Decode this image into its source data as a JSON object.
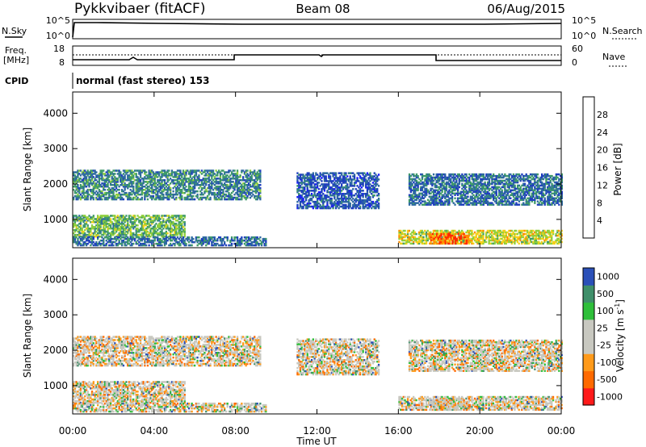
{
  "header": {
    "station": "Pykkvibaer (fitACF)",
    "beam": "Beam 08",
    "date": "06/Aug/2015"
  },
  "status_panels": {
    "nsky_label": "N.Sky",
    "nsearch_label": "N.Search",
    "nsky_ticks": [
      "10^5",
      "10^0"
    ],
    "nsearch_ticks": [
      "10^5",
      "10^0"
    ],
    "freq_label_line1": "Freq.",
    "freq_label_line2": "[MHz]",
    "freq_ticks": [
      "18",
      "8"
    ],
    "nave_label": "Nave",
    "nave_ticks": [
      "60",
      "0"
    ],
    "cpid_label": "CPID",
    "cpid_text": "normal (fast stereo) 153"
  },
  "colors": {
    "power": [
      "#1a1aff",
      "#1f3fbf",
      "#2e6aa0",
      "#3f9a6a",
      "#8fcf3c",
      "#f4d11a",
      "#ff8c00",
      "#ff2a00"
    ],
    "velocity": [
      "#ff1a1a",
      "#ff6a00",
      "#ff9a1a",
      "#c8c8c0",
      "#c8c8c0",
      "#2fbf3a",
      "#3f8f6a",
      "#2b50b8"
    ]
  },
  "chart_data": [
    {
      "type": "heatmap",
      "panel": "power",
      "ylabel": "Slant Range [km]",
      "yticks": [
        "1000",
        "2000",
        "3000",
        "4000"
      ],
      "ylim": [
        200,
        4600
      ],
      "xlim_hours": [
        0,
        24
      ],
      "colorbar_label": "Power [dB]",
      "colorbar_ticks": [
        "4",
        "8",
        "12",
        "16",
        "20",
        "24",
        "28"
      ],
      "colorbar_range": [
        0,
        32
      ],
      "features": [
        {
          "t": [
            0.0,
            9.2
          ],
          "r": [
            1550,
            2400
          ],
          "v": 12
        },
        {
          "t": [
            0.0,
            5.5
          ],
          "r": [
            500,
            1100
          ],
          "v": 16
        },
        {
          "t": [
            0.0,
            9.5
          ],
          "r": [
            250,
            500
          ],
          "v": 10
        },
        {
          "t": [
            11.0,
            15.0
          ],
          "r": [
            1300,
            2300
          ],
          "v": 8
        },
        {
          "t": [
            16.0,
            24.0
          ],
          "r": [
            300,
            700
          ],
          "v": 20
        },
        {
          "t": [
            17.5,
            19.5
          ],
          "r": [
            300,
            600
          ],
          "v": 28
        },
        {
          "t": [
            16.5,
            24.0
          ],
          "r": [
            1400,
            2300
          ],
          "v": 10
        }
      ]
    },
    {
      "type": "heatmap",
      "panel": "velocity",
      "ylabel": "Slant Range [km]",
      "yticks": [
        "1000",
        "2000",
        "3000",
        "4000"
      ],
      "ylim": [
        200,
        4600
      ],
      "xlim_hours": [
        0,
        24
      ],
      "xticks": [
        "00:00",
        "04:00",
        "08:00",
        "12:00",
        "16:00",
        "20:00",
        "00:00"
      ],
      "xlabel": "Time UT",
      "colorbar_label": "Velocity [m s",
      "colorbar_label_sup": "-1",
      "colorbar_label_tail": "]",
      "colorbar_ticks": [
        "-1000",
        "-500",
        "-100",
        "-25",
        "25",
        "100",
        "500",
        "1000"
      ],
      "colorbar_range": [
        -1000,
        1000
      ]
    }
  ]
}
